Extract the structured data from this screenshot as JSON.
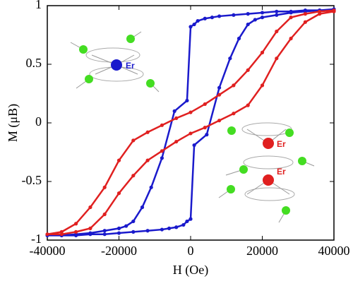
{
  "chart_data": {
    "type": "line",
    "xlabel": "H (Oe)",
    "ylabel": "M (μB)",
    "xlim": [
      -40000,
      40000
    ],
    "xticks": [
      -40000,
      -20000,
      0,
      20000,
      40000
    ],
    "ylim": [
      -1,
      1
    ],
    "yticks": [
      -1,
      -0.5,
      0,
      0.5,
      1
    ],
    "annotations": [
      "Er",
      "Er",
      "Er"
    ],
    "series": [
      {
        "color": "#1a1acc",
        "x": [
          40000,
          36000,
          32000,
          28000,
          24000,
          20000,
          16000,
          12000,
          8000,
          6000,
          4000,
          2000,
          1000,
          0,
          -1000,
          -4500,
          -8000,
          -11000,
          -13500,
          -16000,
          -18000,
          -20000,
          -24000,
          -28000,
          -32000,
          -36000,
          -40000,
          -36000,
          -32000,
          -28000,
          -24000,
          -20000,
          -16000,
          -12000,
          -8000,
          -6000,
          -4000,
          -2000,
          -1000,
          0,
          1000,
          4500,
          8000,
          11000,
          13500,
          16000,
          18000,
          20000,
          24000,
          28000,
          32000,
          36000,
          40000
        ],
        "values": [
          0.97,
          0.96,
          0.96,
          0.95,
          0.95,
          0.94,
          0.93,
          0.92,
          0.91,
          0.9,
          0.89,
          0.87,
          0.84,
          0.82,
          0.19,
          0.1,
          -0.3,
          -0.55,
          -0.72,
          -0.84,
          -0.88,
          -0.9,
          -0.92,
          -0.94,
          -0.95,
          -0.96,
          -0.96,
          -0.96,
          -0.96,
          -0.95,
          -0.95,
          -0.94,
          -0.93,
          -0.92,
          -0.91,
          -0.9,
          -0.89,
          -0.87,
          -0.84,
          -0.82,
          -0.19,
          -0.1,
          0.3,
          0.55,
          0.72,
          0.84,
          0.88,
          0.9,
          0.92,
          0.94,
          0.95,
          0.96,
          0.96
        ]
      },
      {
        "color": "#e02020",
        "x": [
          40000,
          36000,
          32000,
          28000,
          24000,
          20000,
          16000,
          12000,
          8000,
          4000,
          0,
          -4000,
          -8000,
          -12000,
          -16000,
          -20000,
          -24000,
          -28000,
          -32000,
          -36000,
          -40000,
          -36000,
          -32000,
          -28000,
          -24000,
          -20000,
          -16000,
          -12000,
          -8000,
          -4000,
          0,
          4000,
          8000,
          12000,
          16000,
          20000,
          24000,
          28000,
          32000,
          36000,
          40000
        ],
        "values": [
          0.96,
          0.95,
          0.93,
          0.9,
          0.78,
          0.6,
          0.45,
          0.32,
          0.24,
          0.16,
          0.09,
          0.04,
          -0.02,
          -0.08,
          -0.15,
          -0.32,
          -0.55,
          -0.72,
          -0.86,
          -0.93,
          -0.95,
          -0.95,
          -0.93,
          -0.9,
          -0.78,
          -0.6,
          -0.45,
          -0.32,
          -0.24,
          -0.16,
          -0.09,
          -0.04,
          0.02,
          0.08,
          0.15,
          0.32,
          0.55,
          0.72,
          0.86,
          0.93,
          0.95
        ]
      }
    ]
  }
}
